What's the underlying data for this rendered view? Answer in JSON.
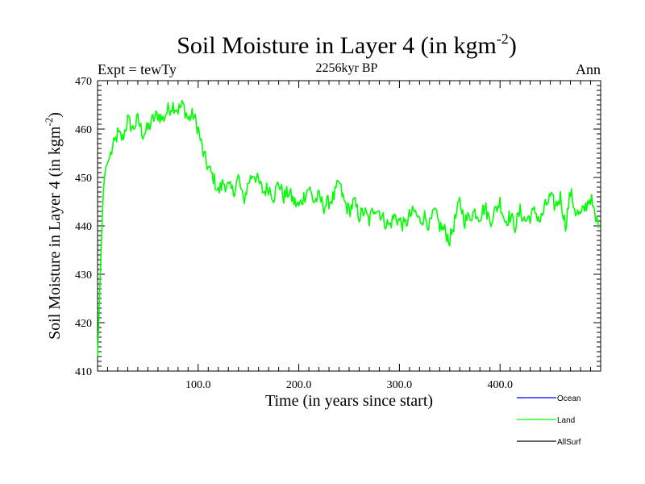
{
  "chart_data": {
    "type": "line",
    "title": "Soil Moisture in Layer 4 (in kgm",
    "title_superscript": "-2",
    "title_end": ")",
    "subtitle_left": "Expt = tewTy",
    "subtitle_center": "2256kyr BP",
    "subtitle_right": "Ann",
    "xlabel": "Time (in years since start)",
    "ylabel": "Soil Moisture in Layer 4 (in kgm",
    "ylabel_superscript": "-2",
    "ylabel_end": ")",
    "xlim": [
      0,
      500
    ],
    "ylim": [
      410,
      470
    ],
    "x_ticks": [
      100,
      200,
      300,
      400
    ],
    "x_tick_labels": [
      "100.0",
      "200.0",
      "300.0",
      "400.0"
    ],
    "y_ticks": [
      410,
      420,
      430,
      440,
      450,
      460,
      470
    ],
    "y_tick_labels": [
      "410",
      "420",
      "430",
      "440",
      "450",
      "460",
      "470"
    ],
    "legend": [
      {
        "name": "Ocean",
        "color": "#0000ff"
      },
      {
        "name": "Land",
        "color": "#00ff00"
      },
      {
        "name": "AllSurf",
        "color": "#000000"
      }
    ],
    "legend_position": "bottom-right",
    "series": [
      {
        "name": "Land",
        "color": "#00ff00",
        "x": [
          0,
          2,
          4,
          6,
          8,
          10,
          15,
          20,
          25,
          30,
          35,
          40,
          45,
          50,
          55,
          60,
          65,
          70,
          75,
          80,
          85,
          90,
          95,
          100,
          105,
          110,
          115,
          120,
          125,
          130,
          135,
          140,
          145,
          150,
          155,
          160,
          165,
          170,
          175,
          180,
          185,
          190,
          195,
          200,
          205,
          210,
          215,
          220,
          225,
          230,
          235,
          240,
          245,
          250,
          255,
          260,
          265,
          270,
          275,
          280,
          285,
          290,
          295,
          300,
          305,
          310,
          315,
          320,
          325,
          330,
          335,
          340,
          345,
          350,
          355,
          360,
          365,
          370,
          375,
          380,
          385,
          390,
          395,
          400,
          405,
          410,
          415,
          420,
          425,
          430,
          435,
          440,
          445,
          450,
          455,
          460,
          465,
          470,
          475,
          480,
          485,
          490,
          495,
          498
        ],
        "values": [
          413,
          425,
          438,
          448,
          452,
          453,
          456,
          459,
          458,
          462,
          460,
          462,
          459,
          460,
          462,
          463,
          462,
          464,
          465,
          464,
          465,
          462,
          463,
          460,
          455,
          452,
          450,
          447,
          449,
          448,
          447,
          450,
          445,
          449,
          451,
          449,
          447,
          448,
          446,
          449,
          446,
          447,
          445,
          444,
          446,
          448,
          445,
          446,
          444,
          445,
          446,
          449,
          445,
          443,
          445,
          442,
          443,
          441,
          444,
          443,
          441,
          440,
          442,
          441,
          440,
          442,
          443,
          441,
          442,
          440,
          443,
          440,
          439,
          437,
          441,
          445,
          441,
          442,
          443,
          442,
          444,
          441,
          443,
          445,
          441,
          442,
          440,
          443,
          441,
          442,
          443,
          441,
          444,
          446,
          444,
          446,
          440,
          447,
          443,
          442,
          444,
          446,
          441,
          441
        ]
      }
    ]
  }
}
